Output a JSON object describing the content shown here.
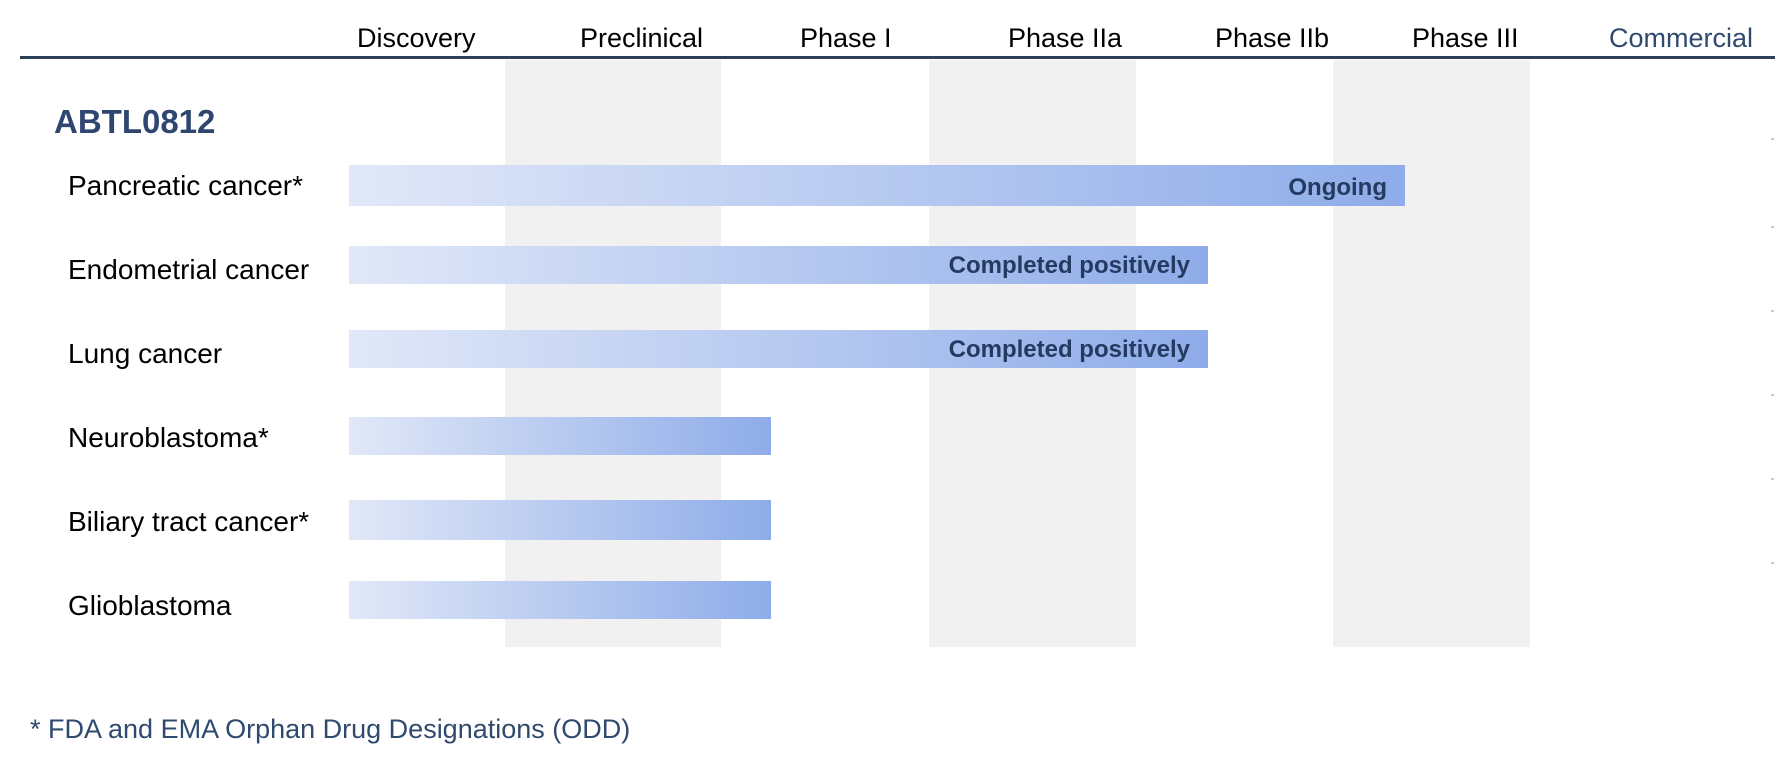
{
  "chart_data": {
    "type": "bar",
    "orientation": "horizontal",
    "title": "ABTL0812",
    "phases": [
      "Discovery",
      "Preclinical",
      "Phase I",
      "Phase IIa",
      "Phase IIb",
      "Phase III",
      "Commercial"
    ],
    "shaded_phases": [
      "Preclinical",
      "Phase IIa",
      "Phase III"
    ],
    "categories": [
      "Pancreatic cancer*",
      "Endometrial cancer",
      "Lung cancer",
      "Neuroblastoma*",
      "Biliary tract cancer*",
      "Glioblastoma"
    ],
    "reached_phase": [
      "Phase IIb",
      "Phase IIa",
      "Phase IIa",
      "Preclinical",
      "Preclinical",
      "Preclinical"
    ],
    "values": [
      5.0,
      4.0,
      4.0,
      1.9,
      1.9,
      1.9
    ],
    "status_labels": [
      "Ongoing",
      "Completed positively",
      "Completed positively",
      "",
      "",
      ""
    ],
    "xlim": [
      0,
      7
    ],
    "grid": false,
    "legend": "none",
    "footnote": "* FDA and EMA Orphan Drug Designations (ODD)"
  },
  "colors": {
    "header_line": "#2e4057",
    "stripe": "#f1f1f1",
    "bar_start": "#e1e8f8",
    "bar_end": "#8eace9",
    "title": "#2f4670",
    "status_text": "#243a60",
    "commercial_label": "#2f4a6e",
    "footnote": "#2f4a6e"
  }
}
